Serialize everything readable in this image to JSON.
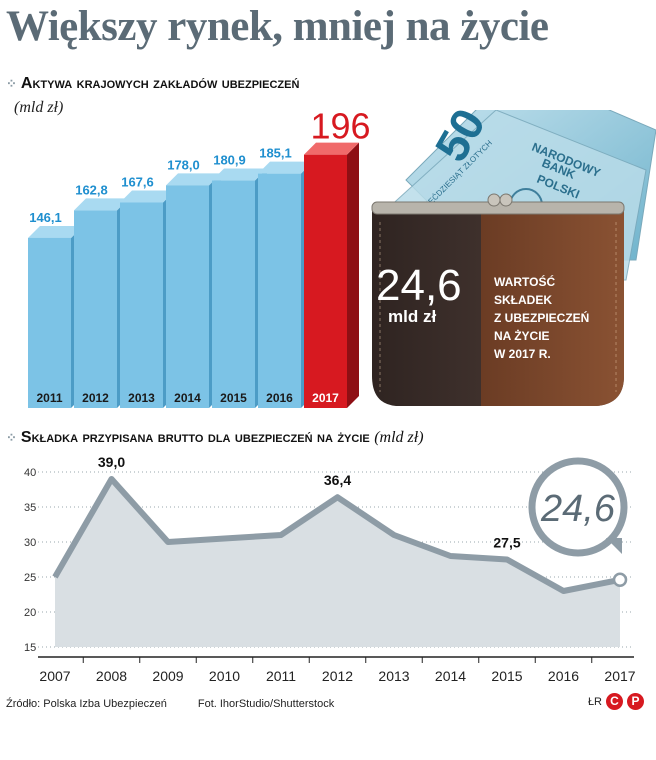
{
  "headline": "Większy rynek, mniej na życie",
  "section1": {
    "title": "Aktywa krajowych zakładów ubezpieczeń",
    "unit": "(mld zł)"
  },
  "wallet": {
    "value": "24,6",
    "value_unit": "mld zł",
    "note": [
      "WARTOŚĆ",
      "SKŁADEK",
      "Z UBEZPIECZEŃ",
      "NA ŻYCIE",
      "W 2017 R."
    ],
    "banknote_value": "50",
    "banknote_lines": [
      "NARODOWY",
      "BANK",
      "POLSKI"
    ],
    "banknote_small": "PIĘĆDZIESIĄT ZŁOTYCH"
  },
  "section2": {
    "title": "Składka przypisana brutto dla ubezpieczeń na życie",
    "unit": "(mld zł)"
  },
  "footer": {
    "source": "Źródło: Polska Izba Ubezpieczeń",
    "credit": "Fot. IhorStudio/Shutterstock",
    "initials": "ŁR",
    "logo_letters": [
      "C",
      "P"
    ]
  },
  "chart_data": [
    {
      "type": "bar",
      "title": "Aktywa krajowych zakładów ubezpieczeń",
      "unit": "(mld zł)",
      "categories": [
        "2011",
        "2012",
        "2013",
        "2014",
        "2015",
        "2016",
        "2017"
      ],
      "values": [
        146.1,
        162.8,
        167.6,
        178.0,
        180.9,
        185.1,
        196.6
      ],
      "labels": [
        "146,1",
        "162,8",
        "167,6",
        "178,0",
        "180,9",
        "185,1",
        "196,6"
      ],
      "colors": {
        "bar": "#7cc3e6",
        "highlight": "#d71920",
        "label": "#1f8fcf"
      }
    },
    {
      "type": "area",
      "title": "Składka przypisana brutto dla ubezpieczeń na życie",
      "unit": "(mld zł)",
      "x": [
        "2007",
        "2008",
        "2009",
        "2010",
        "2011",
        "2012",
        "2013",
        "2014",
        "2015",
        "2016",
        "2017"
      ],
      "values": [
        25.0,
        39.0,
        30.0,
        30.5,
        31.0,
        36.4,
        31.0,
        28.0,
        27.5,
        23.0,
        24.6
      ],
      "yticks": [
        15,
        20,
        25,
        30,
        35,
        40
      ],
      "ylim": [
        15,
        40
      ],
      "grid": "horizontal dotted",
      "annotations": [
        {
          "x": "2008",
          "label": "39,0"
        },
        {
          "x": "2012",
          "label": "36,4"
        },
        {
          "x": "2015",
          "label": "27,5"
        },
        {
          "x": "2017",
          "label": "24,6"
        }
      ]
    }
  ]
}
